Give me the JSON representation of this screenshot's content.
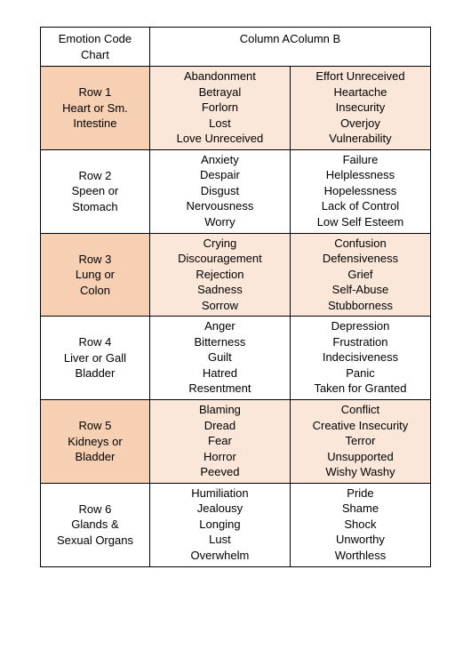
{
  "colors": {
    "shade_label": "#f7cfb3",
    "shade_cell": "#fbe7d9",
    "border": "#000000",
    "background": "#ffffff",
    "text": "#000000"
  },
  "header": {
    "title_l1": "Emotion Code",
    "title_l2": "Chart",
    "colA": "Column A",
    "colB": "Column B"
  },
  "rows": [
    {
      "tag": "Row 1",
      "label_l1": "Heart or Sm.",
      "label_l2": "Intestine",
      "a_head": "Abandonment",
      "b_head": "Effort Unreceived",
      "a": [
        "Betrayal",
        "Forlorn",
        "Lost",
        "Love Unreceived"
      ],
      "b": [
        "Heartache",
        "Insecurity",
        "Overjoy",
        "Vulnerability"
      ]
    },
    {
      "tag": "Row 2",
      "label_l1": "Speen or",
      "label_l2": "Stomach",
      "a_head": "Anxiety",
      "b_head": "Failure",
      "a": [
        "Despair",
        "Disgust",
        "Nervousness",
        "Worry"
      ],
      "b": [
        "Helplessness",
        "Hopelessness",
        "Lack of Control",
        "Low Self Esteem"
      ]
    },
    {
      "tag": "Row 3",
      "label_l1": "Lung or",
      "label_l2": "Colon",
      "a_head": "Crying",
      "b_head": "Confusion",
      "a": [
        "Discouragement",
        "Rejection",
        "Sadness",
        "Sorrow"
      ],
      "b": [
        "Defensiveness",
        "Grief",
        "Self-Abuse",
        "Stubborness"
      ]
    },
    {
      "tag": "Row 4",
      "label_l1": "Liver or Gall",
      "label_l2": "Bladder",
      "a_head": "Anger",
      "b_head": "Depression",
      "a": [
        "Bitterness",
        "Guilt",
        "Hatred",
        "Resentment"
      ],
      "b": [
        "Frustration",
        "Indecisiveness",
        "Panic",
        "Taken for Granted"
      ]
    },
    {
      "tag": "Row 5",
      "label_l1": "Kidneys or",
      "label_l2": "Bladder",
      "a_head": "Blaming",
      "b_head": "Conflict",
      "a": [
        "Dread",
        "Fear",
        "Horror",
        "Peeved"
      ],
      "b": [
        "Creative Insecurity",
        "Terror",
        "Unsupported",
        "Wishy Washy"
      ]
    },
    {
      "tag": "Row 6",
      "label_l1": "Glands &",
      "label_l2": "Sexual Organs",
      "a_head": "Humiliation",
      "b_head": "Pride",
      "a": [
        "Jealousy",
        "Longing",
        "Lust",
        "Overwhelm"
      ],
      "b": [
        "Shame",
        "Shock",
        "Unworthy",
        "Worthless"
      ]
    }
  ]
}
